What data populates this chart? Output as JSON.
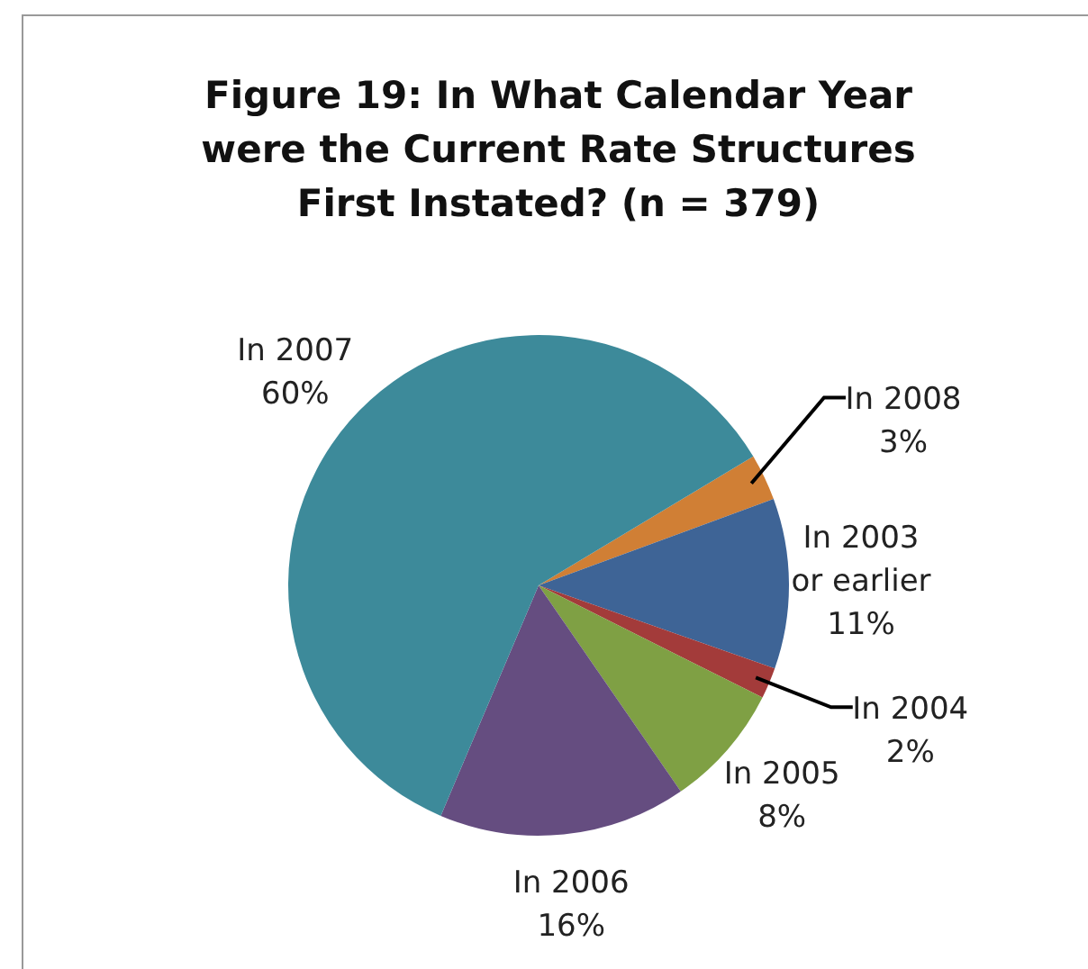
{
  "chart_data": {
    "type": "pie",
    "title": "Figure 19: In What Calendar Year were the Current Rate Structures First Instated? (n = 379)",
    "categories": [
      "In 2008",
      "In 2003 or earlier",
      "In 2004",
      "In 2005",
      "In 2006",
      "In 2007"
    ],
    "values": [
      3,
      11,
      2,
      8,
      16,
      60
    ],
    "value_labels": [
      "3%",
      "11%",
      "2%",
      "8%",
      "16%",
      "60%"
    ],
    "colors": [
      "#d07f35",
      "#3e6496",
      "#a33b3a",
      "#7fa044",
      "#654d80",
      "#3d8a9a"
    ],
    "legend": false
  }
}
